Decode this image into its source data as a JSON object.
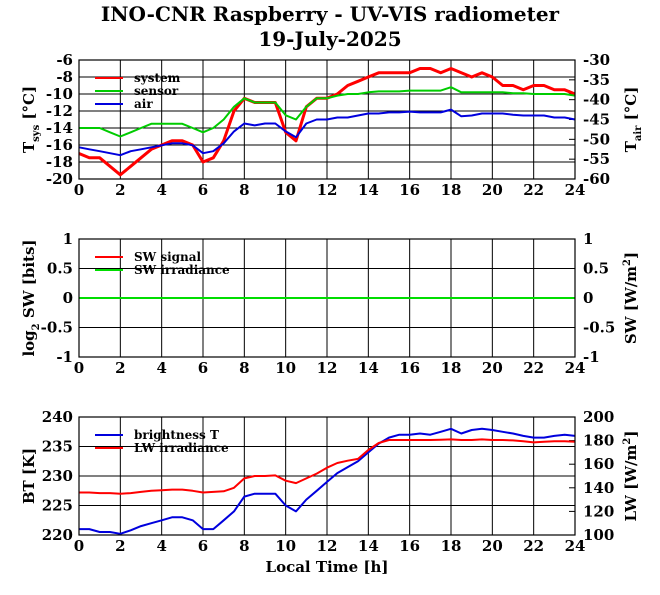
{
  "title": "INO-CNR Raspberry - UV-VIS radiometer",
  "subtitle": "19-July-2025",
  "chart_data": [
    {
      "type": "line",
      "xlabel": "",
      "xlim": [
        0,
        24
      ],
      "x_ticks": [
        "0",
        "2",
        "4",
        "6",
        "8",
        "10",
        "12",
        "14",
        "16",
        "18",
        "20",
        "22",
        "24"
      ],
      "ylabel_left": "T",
      "ylabel_left_sub": "sys",
      "ylabel_left_unit": "[°C]",
      "ylim_left": [
        -20,
        -6
      ],
      "y_ticks_left": [
        "-6",
        "-8",
        "-10",
        "-12",
        "-14",
        "-16",
        "-18",
        "-20"
      ],
      "ylabel_right": "T",
      "ylabel_right_sub": "air",
      "ylabel_right_unit": "[°C]",
      "ylim_right": [
        -60,
        -30
      ],
      "y_ticks_right": [
        "-30",
        "-35",
        "-40",
        "-45",
        "-50",
        "-55",
        "-60"
      ],
      "grid": true,
      "legend_position": "top-left",
      "series": [
        {
          "name": "system",
          "color": "#ff0000",
          "axis": "left",
          "x": [
            0,
            0.5,
            1,
            1.5,
            2,
            2.5,
            3,
            3.5,
            4,
            4.5,
            5,
            5.5,
            6,
            6.5,
            7,
            7.5,
            8,
            8.5,
            9,
            9.5,
            10,
            10.5,
            11,
            11.5,
            12,
            12.5,
            13,
            13.5,
            14,
            14.5,
            15,
            15.5,
            16,
            16.5,
            17,
            17.5,
            18,
            18.5,
            19,
            19.5,
            20,
            20.5,
            21,
            21.5,
            22,
            22.5,
            23,
            23.5,
            24
          ],
          "y": [
            -17,
            -17.5,
            -17.5,
            -18.5,
            -19.5,
            -18.5,
            -17.5,
            -16.5,
            -16,
            -15.5,
            -15.5,
            -16,
            -18,
            -17.5,
            -15.5,
            -12,
            -10.5,
            -11,
            -11,
            -11,
            -14.5,
            -15.5,
            -11.5,
            -10.5,
            -10.5,
            -10,
            -9,
            -8.5,
            -8,
            -7.5,
            -7.5,
            -7.5,
            -7.5,
            -7,
            -7,
            -7.5,
            -7,
            -7.5,
            -8,
            -7.5,
            -8,
            -9,
            -9,
            -9.5,
            -9,
            -9,
            -9.5,
            -9.5,
            -10
          ]
        },
        {
          "name": "sensor",
          "color": "#00cc00",
          "axis": "left",
          "x": [
            0,
            0.5,
            1,
            1.5,
            2,
            2.5,
            3,
            3.5,
            4,
            4.5,
            5,
            5.5,
            6,
            6.5,
            7,
            7.5,
            8,
            8.5,
            9,
            9.5,
            10,
            10.5,
            11,
            11.5,
            12,
            12.5,
            13,
            13.5,
            14,
            14.5,
            15,
            15.5,
            16,
            16.5,
            17,
            17.5,
            18,
            18.5,
            19,
            19.5,
            20,
            20.5,
            21,
            21.5,
            22,
            22.5,
            23,
            23.5,
            24
          ],
          "y": [
            -14,
            -14,
            -14,
            -14.5,
            -15,
            -14.5,
            -14,
            -13.5,
            -13.5,
            -13.5,
            -13.5,
            -14,
            -14.5,
            -14,
            -13,
            -11.5,
            -10.5,
            -11,
            -11,
            -11,
            -12.5,
            -13,
            -11.5,
            -10.5,
            -10.5,
            -10.2,
            -10,
            -10,
            -9.8,
            -9.7,
            -9.7,
            -9.7,
            -9.6,
            -9.6,
            -9.6,
            -9.6,
            -9.2,
            -9.8,
            -9.8,
            -9.8,
            -9.8,
            -9.8,
            -9.9,
            -9.9,
            -10,
            -10,
            -10,
            -10,
            -10.2
          ]
        },
        {
          "name": "air",
          "color": "#0000dd",
          "axis": "right",
          "x": [
            0,
            0.5,
            1,
            1.5,
            2,
            2.5,
            3,
            3.5,
            4,
            4.5,
            5,
            5.5,
            6,
            6.5,
            7,
            7.5,
            8,
            8.5,
            9,
            9.5,
            10,
            10.5,
            11,
            11.5,
            12,
            12.5,
            13,
            13.5,
            14,
            14.5,
            15,
            15.5,
            16,
            16.5,
            17,
            17.5,
            18,
            18.5,
            19,
            19.5,
            20,
            20.5,
            21,
            21.5,
            22,
            22.5,
            23,
            23.5,
            24
          ],
          "y": [
            -52,
            -52.5,
            -53,
            -53.5,
            -54,
            -53,
            -52.5,
            -52,
            -51.5,
            -51,
            -51,
            -51.5,
            -53.5,
            -53,
            -51,
            -48,
            -46,
            -46.5,
            -46,
            -46,
            -48,
            -49.5,
            -46,
            -45,
            -45,
            -44.5,
            -44.5,
            -44,
            -43.5,
            -43.5,
            -43.2,
            -43.2,
            -43,
            -43.2,
            -43.2,
            -43.2,
            -42.5,
            -44.2,
            -44,
            -43.5,
            -43.5,
            -43.5,
            -43.8,
            -44,
            -44,
            -44,
            -44.5,
            -44.5,
            -45
          ]
        }
      ]
    },
    {
      "type": "line",
      "xlabel": "",
      "xlim": [
        0,
        24
      ],
      "x_ticks": [
        "0",
        "2",
        "4",
        "6",
        "8",
        "10",
        "12",
        "14",
        "16",
        "18",
        "20",
        "22",
        "24"
      ],
      "ylabel_left": "log",
      "ylabel_left_sub": "2",
      "ylabel_left_unit": "SW [bits]",
      "ylim_left": [
        -1,
        1
      ],
      "y_ticks_left": [
        "1",
        "0.5",
        "0",
        "-0.5",
        "-1"
      ],
      "ylabel_right": "SW [W/m",
      "ylabel_right_sup": "2",
      "ylabel_right_end": "]",
      "ylim_right": [
        -1,
        1
      ],
      "y_ticks_right": [
        "1",
        "0.5",
        "0",
        "-0.5",
        "-1"
      ],
      "grid": true,
      "legend_position": "top-left",
      "series": [
        {
          "name": "SW signal",
          "color": "#ff0000",
          "axis": "left",
          "x": [
            0,
            24
          ],
          "y": [
            0,
            0
          ]
        },
        {
          "name": "SW irradiance",
          "color": "#00dd00",
          "axis": "right",
          "x": [
            0,
            24
          ],
          "y": [
            0,
            0
          ]
        }
      ]
    },
    {
      "type": "line",
      "xlabel": "Local Time [h]",
      "xlim": [
        0,
        24
      ],
      "x_ticks": [
        "0",
        "2",
        "4",
        "6",
        "8",
        "10",
        "12",
        "14",
        "16",
        "18",
        "20",
        "22",
        "24"
      ],
      "ylabel_left": "BT [K]",
      "ylim_left": [
        220,
        240
      ],
      "y_ticks_left": [
        "240",
        "235",
        "230",
        "225",
        "220"
      ],
      "ylabel_right": "LW [W/m",
      "ylabel_right_sup": "2",
      "ylabel_right_end": "]",
      "ylim_right": [
        100,
        200
      ],
      "y_ticks_right": [
        "200",
        "180",
        "160",
        "140",
        "120",
        "100"
      ],
      "grid": true,
      "legend_position": "top-left",
      "series": [
        {
          "name": "brightness T",
          "color": "#0000dd",
          "axis": "left",
          "x": [
            0,
            0.5,
            1,
            1.5,
            2,
            2.5,
            3,
            3.5,
            4,
            4.5,
            5,
            5.5,
            6,
            6.5,
            7,
            7.5,
            8,
            8.5,
            9,
            9.5,
            10,
            10.5,
            11,
            11.5,
            12,
            12.5,
            13,
            13.5,
            14,
            14.5,
            15,
            15.5,
            16,
            16.5,
            17,
            17.5,
            18,
            18.5,
            19,
            19.5,
            20,
            20.5,
            21,
            21.5,
            22,
            22.5,
            23,
            23.5,
            24
          ],
          "y": [
            221,
            221,
            220.5,
            220.5,
            220.2,
            220.8,
            221.5,
            222,
            222.5,
            223,
            223,
            222.5,
            221,
            221,
            222.5,
            224,
            226.5,
            227,
            227,
            227,
            225,
            224,
            226,
            227.5,
            229,
            230.5,
            231.5,
            232.5,
            234,
            235.5,
            236.5,
            237,
            237,
            237.2,
            237,
            237.5,
            238,
            237.2,
            237.8,
            238,
            237.8,
            237.5,
            237.2,
            236.8,
            236.5,
            236.5,
            236.8,
            237,
            236.8
          ]
        },
        {
          "name": "LW irradiance",
          "color": "#ff0000",
          "axis": "right",
          "x": [
            0,
            0.5,
            1,
            1.5,
            2,
            2.5,
            3,
            3.5,
            4,
            4.5,
            5,
            5.5,
            6,
            6.5,
            7,
            7.5,
            8,
            8.5,
            9,
            9.5,
            10,
            10.5,
            11,
            11.5,
            12,
            12.5,
            13,
            13.5,
            14,
            14.5,
            15,
            15.5,
            16,
            16.5,
            17,
            17.5,
            18,
            18.5,
            19,
            19.5,
            20,
            20.5,
            21,
            21.5,
            22,
            22.5,
            23,
            23.5,
            24
          ],
          "y": [
            136,
            136,
            135.5,
            135.5,
            135,
            135.5,
            136.5,
            137.5,
            138,
            138.5,
            138.5,
            137.5,
            136,
            136.5,
            137,
            140,
            148,
            150,
            150,
            150.5,
            146,
            144,
            148,
            152,
            157,
            161,
            163,
            164.5,
            172,
            178,
            180.5,
            180.5,
            180.5,
            180.5,
            180.5,
            180.7,
            181,
            180.5,
            180.5,
            181,
            180.5,
            180.5,
            180.2,
            179.5,
            178.5,
            179,
            179.5,
            179.5,
            179
          ]
        }
      ]
    }
  ]
}
